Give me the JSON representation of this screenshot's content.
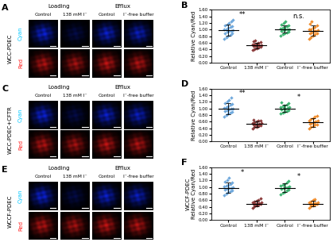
{
  "microscopy": {
    "column_groups": [
      {
        "label": "Loading",
        "columns": [
          "Control",
          "138 mM I⁻"
        ]
      },
      {
        "label": "Efflux",
        "columns": [
          "Control",
          "I⁻-free buffer"
        ]
      }
    ],
    "channels": [
      {
        "label": "Cyan",
        "color": "#00c8ff"
      },
      {
        "label": "Red",
        "color": "#ff2020"
      }
    ],
    "panels": [
      {
        "panel": "A",
        "row_label": "WCC-PDEC"
      },
      {
        "panel": "C",
        "row_label": "WCC-PDEC+CFTR"
      },
      {
        "panel": "E",
        "row_label": "WCCF-PDEC"
      }
    ]
  },
  "chart_data": [
    {
      "type": "scatter",
      "panel": "B",
      "ylabel": "Relative Cyan/Red",
      "categories": [
        "Control",
        "138 mM I⁻",
        "Control",
        "I⁻-free buffer"
      ],
      "colors": [
        "#6fa8dc",
        "#8b3a3a",
        "#3cb371",
        "#f08c2c"
      ],
      "values": [
        [
          0.72,
          0.78,
          0.82,
          0.85,
          0.88,
          0.9,
          0.93,
          0.95,
          0.97,
          0.98,
          1.0,
          1.02,
          1.05,
          1.08,
          1.1,
          1.12,
          1.15,
          1.2,
          1.25,
          1.3
        ],
        [
          0.38,
          0.42,
          0.44,
          0.46,
          0.48,
          0.5,
          0.5,
          0.52,
          0.53,
          0.54,
          0.55,
          0.56,
          0.58,
          0.6,
          0.62,
          0.65,
          0.68
        ],
        [
          0.82,
          0.86,
          0.9,
          0.92,
          0.94,
          0.96,
          0.98,
          1.0,
          1.0,
          1.02,
          1.04,
          1.06,
          1.08,
          1.1,
          1.12,
          1.15,
          1.2,
          1.25
        ],
        [
          0.72,
          0.78,
          0.82,
          0.86,
          0.88,
          0.9,
          0.92,
          0.95,
          0.97,
          0.98,
          1.0,
          1.02,
          1.05,
          1.08,
          1.12,
          1.18,
          1.25
        ]
      ],
      "means": [
        0.98,
        0.52,
        1.02,
        0.97
      ],
      "errors": [
        0.17,
        0.08,
        0.11,
        0.15
      ],
      "annotations": [
        {
          "text": "**",
          "from": 0,
          "to": 1
        },
        {
          "text": "n.s.",
          "from": 2,
          "to": 3
        }
      ],
      "ylim": [
        0,
        1.6
      ],
      "yticks": [
        {
          "value": 0,
          "label": "0.00"
        },
        {
          "value": 0.2,
          "label": "0.20"
        },
        {
          "value": 0.4,
          "label": "0.40"
        },
        {
          "value": 0.6,
          "label": "0.60"
        },
        {
          "value": 0.8,
          "label": "0.80"
        },
        {
          "value": 1.0,
          "label": "1.00"
        },
        {
          "value": 1.2,
          "label": "1.20"
        },
        {
          "value": 1.4,
          "label": "1.40"
        },
        {
          "value": 1.6,
          "label": "1.60"
        }
      ],
      "grid": false
    },
    {
      "type": "scatter",
      "panel": "D",
      "ylabel": "Relative Cyan/Red",
      "categories": [
        "Control",
        "138 mM I⁻",
        "Control",
        "I⁻-free buffer"
      ],
      "colors": [
        "#6fa8dc",
        "#8b3a3a",
        "#3cb371",
        "#f08c2c"
      ],
      "values": [
        [
          0.74,
          0.8,
          0.84,
          0.87,
          0.9,
          0.93,
          0.95,
          0.97,
          0.99,
          1.0,
          1.02,
          1.04,
          1.06,
          1.1,
          1.13,
          1.16,
          1.2,
          1.26,
          1.32
        ],
        [
          0.4,
          0.43,
          0.45,
          0.47,
          0.49,
          0.5,
          0.51,
          0.52,
          0.53,
          0.55,
          0.56,
          0.58,
          0.6,
          0.62,
          0.64,
          0.66
        ],
        [
          0.85,
          0.88,
          0.9,
          0.93,
          0.95,
          0.97,
          0.99,
          1.0,
          1.01,
          1.03,
          1.05,
          1.07,
          1.09,
          1.12,
          1.15,
          1.18
        ],
        [
          0.4,
          0.44,
          0.47,
          0.5,
          0.52,
          0.54,
          0.56,
          0.58,
          0.6,
          0.62,
          0.64,
          0.67,
          0.7,
          0.74,
          0.78
        ]
      ],
      "means": [
        1.0,
        0.53,
        1.0,
        0.58
      ],
      "errors": [
        0.17,
        0.08,
        0.1,
        0.13
      ],
      "annotations": [
        {
          "text": "**",
          "from": 0,
          "to": 1
        },
        {
          "text": "*",
          "from": 2,
          "to": 3
        }
      ],
      "ylim": [
        0,
        1.6
      ],
      "yticks": [
        {
          "value": 0,
          "label": "0.00"
        },
        {
          "value": 0.2,
          "label": "0.20"
        },
        {
          "value": 0.4,
          "label": "0.40"
        },
        {
          "value": 0.6,
          "label": "0.60"
        },
        {
          "value": 0.8,
          "label": "0.80"
        },
        {
          "value": 1.0,
          "label": "1.00"
        },
        {
          "value": 1.2,
          "label": "1.20"
        },
        {
          "value": 1.4,
          "label": "1.40"
        },
        {
          "value": 1.6,
          "label": "1.60"
        }
      ],
      "grid": false
    },
    {
      "type": "scatter",
      "panel": "F",
      "ylabel": "WCCF-PDEC\nRelative Cyan/Red",
      "categories": [
        "Control",
        "138 mM I⁻",
        "Control",
        "I⁻-free buffer"
      ],
      "colors": [
        "#6fa8dc",
        "#8b3a3a",
        "#3cb371",
        "#f08c2c"
      ],
      "values": [
        [
          0.75,
          0.8,
          0.84,
          0.88,
          0.9,
          0.93,
          0.95,
          0.97,
          0.98,
          1.0,
          1.02,
          1.04,
          1.07,
          1.1,
          1.13,
          1.17,
          1.22,
          1.28
        ],
        [
          0.38,
          0.41,
          0.44,
          0.46,
          0.48,
          0.49,
          0.5,
          0.51,
          0.52,
          0.53,
          0.55,
          0.57,
          0.59,
          0.62,
          0.65
        ],
        [
          0.78,
          0.82,
          0.86,
          0.9,
          0.93,
          0.95,
          0.97,
          0.99,
          1.0,
          1.02,
          1.04,
          1.07,
          1.1,
          1.14,
          1.18
        ],
        [
          0.38,
          0.42,
          0.44,
          0.46,
          0.48,
          0.49,
          0.5,
          0.51,
          0.52,
          0.53,
          0.55,
          0.57,
          0.6,
          0.63
        ]
      ],
      "means": [
        0.98,
        0.5,
        0.98,
        0.5
      ],
      "errors": [
        0.15,
        0.08,
        0.13,
        0.08
      ],
      "annotations": [
        {
          "text": "*",
          "from": 0,
          "to": 1
        },
        {
          "text": "*",
          "from": 2,
          "to": 3
        }
      ],
      "ylim": [
        0,
        1.6
      ],
      "yticks": [
        {
          "value": 0,
          "label": "0.00"
        },
        {
          "value": 0.2,
          "label": "0.20"
        },
        {
          "value": 0.4,
          "label": "0.40"
        },
        {
          "value": 0.6,
          "label": "0.60"
        },
        {
          "value": 0.8,
          "label": "0.80"
        },
        {
          "value": 1.0,
          "label": "1.00"
        },
        {
          "value": 1.2,
          "label": "1.20"
        },
        {
          "value": 1.4,
          "label": "1.40"
        },
        {
          "value": 1.6,
          "label": "1.60"
        }
      ],
      "grid": false
    }
  ]
}
